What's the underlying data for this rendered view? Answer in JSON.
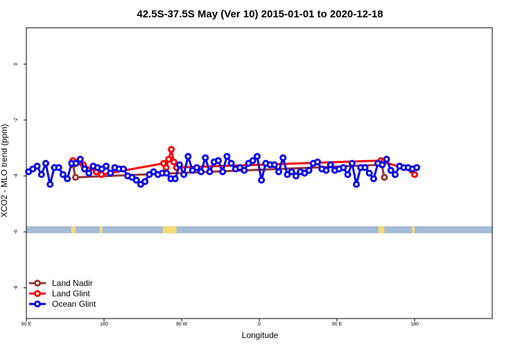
{
  "chart_data": {
    "type": "line",
    "title": "42.5S-37.5S May (Ver 10)   2015-01-01 to 2020-12-18",
    "xlabel": "Longitude",
    "ylabel": "XCO2 - MLO trend (ppm)",
    "xlim": [
      -90,
      450
    ],
    "ylim": [
      -9.1,
      1.3
    ],
    "x_ticks": [
      {
        "value": -90,
        "label": "90 E"
      },
      {
        "value": 0,
        "label": "180"
      },
      {
        "value": 90,
        "label": "90 W"
      },
      {
        "value": 180,
        "label": "0"
      },
      {
        "value": 270,
        "label": "90 E"
      },
      {
        "value": 360,
        "label": "180"
      }
    ],
    "y_ticks": [
      {
        "value": 0,
        "label": "0"
      },
      {
        "value": -2,
        "label": "-2"
      },
      {
        "value": -4,
        "label": "-4"
      },
      {
        "value": -6,
        "label": "-6"
      },
      {
        "value": -8,
        "label": "-8"
      }
    ],
    "grid": false,
    "legend_position": "bottom-left",
    "series": [
      {
        "name": "Land Nadir",
        "color": "#993333",
        "x": [
          -36,
          -33,
          322,
          325
        ],
        "y": [
          -3.6,
          -4.05,
          -3.6,
          -4.05
        ]
      },
      {
        "name": "Land Glint",
        "color": "#ff0000",
        "x": [
          -36,
          -30,
          -24,
          -9,
          -3,
          69,
          72,
          75,
          78,
          81,
          84,
          321,
          324,
          357,
          360
        ],
        "y": [
          -3.45,
          -3.5,
          -3.6,
          -3.85,
          -3.95,
          -3.55,
          -3.7,
          -3.4,
          -3.05,
          -3.5,
          -3.7,
          -3.45,
          -3.5,
          -3.8,
          -3.95
        ]
      },
      {
        "name": "Ocean Glint",
        "color": "#0000ee",
        "x": [
          -87.5,
          -82.5,
          -77.5,
          -72.5,
          -67.5,
          -62.5,
          -57.5,
          -52.5,
          -47.5,
          -42.5,
          -37.5,
          -32.5,
          -27.5,
          -22.5,
          -17.5,
          -12.5,
          -7.5,
          -2.5,
          2.5,
          7.5,
          12.5,
          17.5,
          22.5,
          27.5,
          32.5,
          37.5,
          42.5,
          47.5,
          52.5,
          57.5,
          62.5,
          67.5,
          72.5,
          77.5,
          82.5,
          87.5,
          92.5,
          97.5,
          102.5,
          107.5,
          112.5,
          117.5,
          122.5,
          127.5,
          132.5,
          137.5,
          142.5,
          147.5,
          152.5,
          157.5,
          162.5,
          167.5,
          172.5,
          177.5,
          182.5,
          187.5,
          192.5,
          197.5,
          202.5,
          207.5,
          212.5,
          217.5,
          222.5,
          227.5,
          232.5,
          237.5,
          242.5,
          247.5,
          252.5,
          257.5,
          262.5,
          267.5,
          272.5,
          277.5,
          282.5,
          287.5,
          292.5,
          297.5,
          302.5,
          307.5,
          312.5,
          317.5,
          322.5,
          327.5,
          332.5,
          337.5,
          342.5,
          347.5,
          352.5,
          357.5,
          362.5
        ],
        "y": [
          -3.85,
          -3.75,
          -3.65,
          -3.95,
          -3.55,
          -4.3,
          -3.7,
          -3.7,
          -3.95,
          -4.1,
          -3.55,
          -3.55,
          -3.4,
          -3.75,
          -3.9,
          -3.65,
          -3.7,
          -3.75,
          -3.65,
          -3.9,
          -3.7,
          -3.75,
          -3.75,
          -4.0,
          -4.05,
          -4.15,
          -4.3,
          -4.2,
          -3.95,
          -3.85,
          -3.95,
          -3.9,
          -3.9,
          -4.1,
          -4.1,
          -3.6,
          -3.95,
          -3.3,
          -3.8,
          -3.7,
          -3.85,
          -3.35,
          -3.85,
          -3.5,
          -3.45,
          -3.85,
          -3.3,
          -3.55,
          -3.75,
          -3.7,
          -3.8,
          -3.55,
          -3.45,
          -3.3,
          -4.15,
          -3.55,
          -3.6,
          -3.6,
          -3.85,
          -3.35,
          -3.95,
          -3.85,
          -4.0,
          -3.85,
          -3.9,
          -3.8,
          -3.55,
          -3.5,
          -3.75,
          -3.8,
          -3.6,
          -3.8,
          -3.75,
          -3.7,
          -3.95,
          -3.55,
          -4.3,
          -3.7,
          -3.7,
          -3.9,
          -4.1,
          -3.55,
          -3.6,
          -3.4,
          -3.8,
          -3.95,
          -3.65,
          -3.7,
          -3.7,
          -3.75,
          -3.7
        ]
      }
    ],
    "surface_band": {
      "y_range": [
        -6.05,
        -5.8
      ],
      "ocean_color": "#a5bcd9",
      "land_color": "#f8d878",
      "land_segments": [
        [
          -38,
          -33
        ],
        [
          -5,
          -2
        ],
        [
          68,
          84
        ],
        [
          318,
          325
        ],
        [
          357,
          360
        ]
      ]
    }
  }
}
